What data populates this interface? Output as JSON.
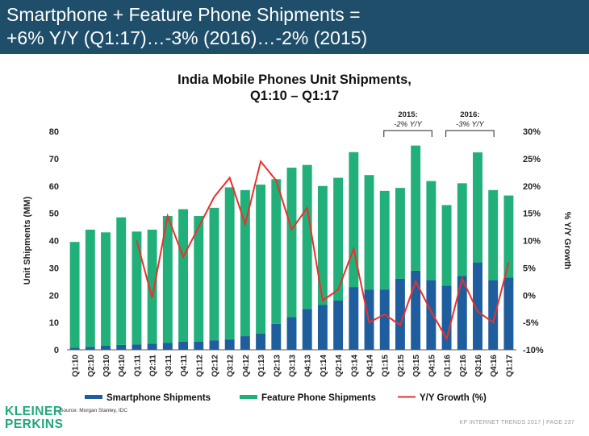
{
  "header": {
    "line1": "Smartphone + Feature Phone Shipments =",
    "line2": "+6% Y/Y (Q1:17)…-3% (2016)…-2% (2015)"
  },
  "chart_data": {
    "type": "bar",
    "stacked": true,
    "title_line1": "India Mobile Phones Unit Shipments,",
    "title_line2": "Q1:10 – Q1:17",
    "ylabel": "Unit Shipments (MM)",
    "y2label": "% Y/Y Growth",
    "ylim": [
      0,
      80
    ],
    "yticks": [
      "0",
      "10",
      "20",
      "30",
      "40",
      "50",
      "60",
      "70",
      "80"
    ],
    "y2lim": [
      -10,
      30
    ],
    "y2ticks": [
      "-10%",
      "-5%",
      "0%",
      "5%",
      "10%",
      "15%",
      "20%",
      "25%",
      "30%"
    ],
    "categories": [
      "Q1:10",
      "Q2:10",
      "Q3:10",
      "Q4:10",
      "Q1:11",
      "Q2:11",
      "Q3:11",
      "Q4:11",
      "Q1:12",
      "Q2:12",
      "Q3:12",
      "Q4:12",
      "Q1:13",
      "Q2:13",
      "Q3:13",
      "Q4:13",
      "Q1:14",
      "Q2:14",
      "Q3:14",
      "Q4:14",
      "Q1:15",
      "Q2:15",
      "Q3:15",
      "Q4:15",
      "Q1:16",
      "Q2:16",
      "Q3:16",
      "Q4:16",
      "Q1:17"
    ],
    "series": [
      {
        "name": "Smartphone Shipments",
        "kind": "bar",
        "color": "#1f5e9e",
        "values": [
          0.8,
          1.1,
          1.5,
          1.8,
          2.0,
          2.2,
          2.5,
          3.0,
          3.0,
          3.5,
          3.8,
          5.0,
          6.0,
          9.5,
          12.0,
          15.0,
          16.5,
          18.0,
          23.0,
          22.0,
          22.0,
          26.0,
          29.0,
          25.5,
          23.5,
          27.0,
          32.0,
          25.5,
          26.5
        ]
      },
      {
        "name": "Feature Phone Shipments",
        "kind": "bar",
        "color": "#22b07a",
        "values": [
          38.7,
          42.9,
          41.5,
          46.7,
          41.3,
          41.8,
          46.5,
          48.5,
          46.0,
          48.5,
          55.7,
          53.5,
          54.5,
          53.0,
          54.7,
          52.7,
          43.5,
          45.0,
          49.4,
          42.0,
          36.2,
          33.3,
          45.8,
          36.3,
          29.5,
          34.0,
          40.3,
          33.0,
          30.0
        ]
      },
      {
        "name": "Y/Y Growth (%)",
        "kind": "line",
        "axis": "right",
        "color": "#e8312b",
        "values": [
          null,
          null,
          null,
          null,
          10.0,
          -0.5,
          14.5,
          7.0,
          12.5,
          18.0,
          21.5,
          13.0,
          24.5,
          21.0,
          12.0,
          16.0,
          -1.0,
          1.0,
          8.5,
          -5.0,
          -3.5,
          -5.5,
          2.5,
          -3.0,
          -8.0,
          3.0,
          -3.0,
          -5.0,
          6.0
        ]
      }
    ],
    "annotations": [
      {
        "label": "2015:",
        "sublabel": "-2% Y/Y",
        "from": "Q1:15",
        "to": "Q4:15"
      },
      {
        "label": "2016:",
        "sublabel": "-3% Y/Y",
        "from": "Q1:16",
        "to": "Q4:16"
      }
    ],
    "legend_position": "bottom"
  },
  "footer": {
    "logo_line1": "KLEINER",
    "logo_line2": "PERKINS",
    "source": "Source: Morgan Stanley, IDC",
    "report": "KP INTERNET TRENDS 2017  |  PAGE 237"
  }
}
